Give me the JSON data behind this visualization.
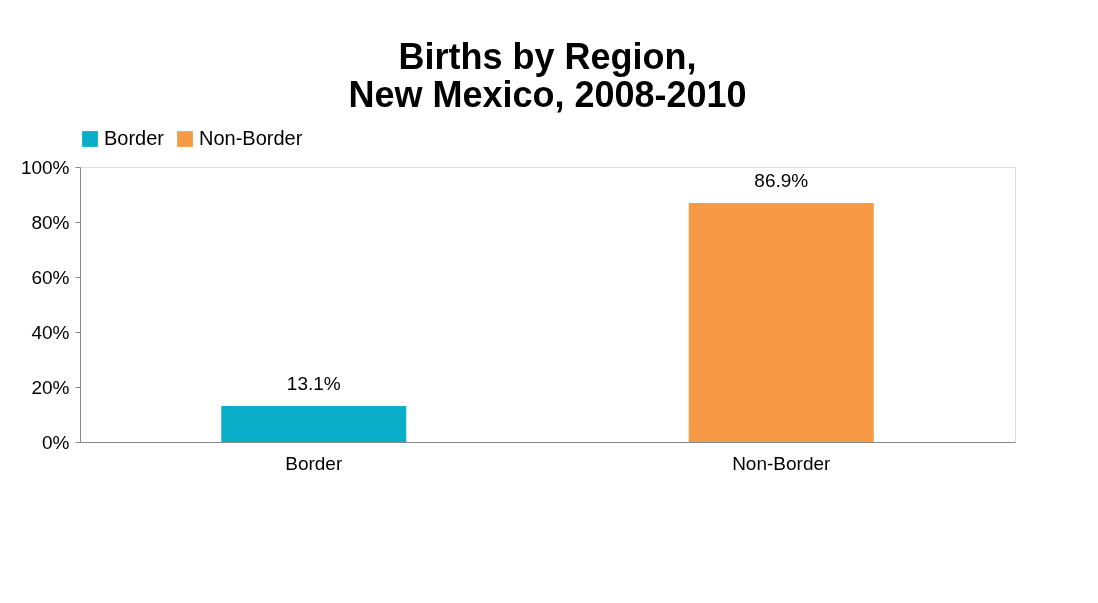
{
  "chart_data": {
    "type": "bar",
    "title": "Births by Region,\nNew Mexico, 2008-2010",
    "categories": [
      "Border",
      "Non-Border"
    ],
    "series": [
      {
        "name": "Border",
        "color": "#0aaec8",
        "values": [
          13.1,
          null
        ],
        "value_labels": [
          "13.1%",
          null
        ]
      },
      {
        "name": "Non-Border",
        "color": "#f79a46",
        "values": [
          null,
          86.9
        ],
        "value_labels": [
          null,
          "86.9%"
        ]
      }
    ],
    "ylim": [
      0,
      100
    ],
    "yticks": [
      {
        "value": 0,
        "label": "0%"
      },
      {
        "value": 20,
        "label": "20%"
      },
      {
        "value": 40,
        "label": "40%"
      },
      {
        "value": 60,
        "label": "60%"
      },
      {
        "value": 80,
        "label": "80%"
      },
      {
        "value": 100,
        "label": "100%"
      }
    ],
    "legend": "top",
    "grid": false
  }
}
